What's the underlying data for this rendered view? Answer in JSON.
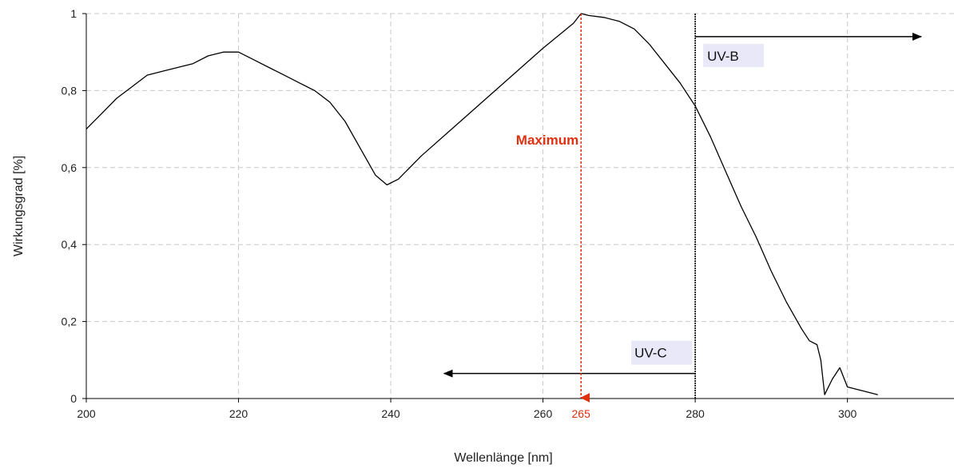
{
  "chart_data": {
    "type": "line",
    "xlabel": "Wellenlänge [nm]",
    "ylabel": "Wirkungsgrad [%]",
    "xlim": [
      200,
      314
    ],
    "ylim": [
      0,
      1
    ],
    "x_ticks": [
      200,
      220,
      240,
      260,
      280,
      300
    ],
    "y_ticks": [
      0,
      0.2,
      0.4,
      0.6,
      0.8,
      1
    ],
    "y_tick_labels": [
      "0",
      "0,2",
      "0,4",
      "0,6",
      "0,8",
      "1"
    ],
    "grid": true,
    "colors": {
      "line": "#000000",
      "highlight": "#e03010",
      "label_bg": "#e8e8f8"
    },
    "series": [
      {
        "x": [
          200,
          202,
          204,
          206,
          208,
          210,
          212,
          214,
          216,
          218,
          220,
          222,
          224,
          226,
          228,
          230,
          232,
          234,
          236,
          238,
          239.5,
          241,
          244,
          248,
          252,
          256,
          260,
          264,
          265,
          266,
          268,
          270,
          272,
          274,
          276,
          278,
          280,
          282,
          284,
          286,
          288,
          290,
          292,
          294,
          295,
          296,
          296.5,
          297,
          298,
          299,
          300,
          302,
          304
        ],
        "y": [
          0.7,
          0.74,
          0.78,
          0.81,
          0.84,
          0.85,
          0.86,
          0.87,
          0.89,
          0.9,
          0.9,
          0.88,
          0.86,
          0.84,
          0.82,
          0.8,
          0.77,
          0.72,
          0.65,
          0.58,
          0.555,
          0.57,
          0.63,
          0.7,
          0.77,
          0.84,
          0.91,
          0.975,
          1.0,
          0.995,
          0.99,
          0.98,
          0.96,
          0.92,
          0.87,
          0.82,
          0.76,
          0.68,
          0.59,
          0.5,
          0.42,
          0.33,
          0.25,
          0.18,
          0.15,
          0.14,
          0.1,
          0.01,
          0.05,
          0.08,
          0.03,
          0.02,
          0.01
        ]
      }
    ],
    "annotations": {
      "maximum": {
        "label": "Maximum",
        "x": 265,
        "x_label": "265",
        "y_top": 1.0,
        "y_bottom": 0
      },
      "uvb": {
        "label": "UV-B",
        "from_x": 280,
        "y": 0.94
      },
      "uvc": {
        "label": "UV-C",
        "from_x": 280,
        "to_x": 247,
        "y": 0.065
      },
      "boundary": {
        "x": 280
      }
    }
  }
}
